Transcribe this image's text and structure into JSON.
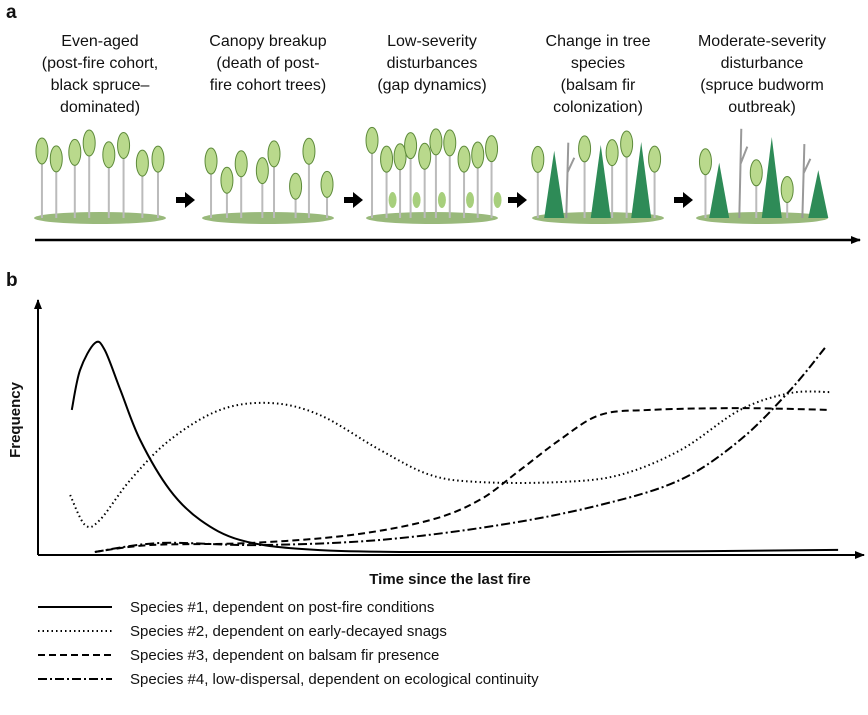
{
  "panel_a": {
    "label": "a",
    "stages": [
      [
        "Even-aged",
        "(post-fire cohort,",
        "black spruce–",
        "dominated)"
      ],
      [
        "Canopy breakup",
        "(death of post-",
        "fire cohort trees)"
      ],
      [
        "Low-severity",
        "disturbances",
        "(gap dynamics)"
      ],
      [
        "Change in tree",
        "species",
        "(balsam fir",
        "colonization)"
      ],
      [
        "Moderate-severity",
        "disturbance",
        "(spruce budworm",
        "outbreak)"
      ]
    ]
  },
  "chart_data": {
    "type": "line",
    "panel_label": "b",
    "x_label": "Time since the last fire",
    "y_label": "Frequency",
    "xlim": [
      0,
      100
    ],
    "ylim": [
      0,
      100
    ],
    "series": [
      {
        "name": "Species #1, dependent on post-fire conditions",
        "color": "#000000",
        "dash": "solid",
        "x": [
          4.1,
          5.1,
          6.9,
          8.1,
          10,
          12.4,
          16,
          19.7,
          24.5,
          31.8,
          43.9,
          68.2,
          97.1
        ],
        "values": [
          56.9,
          72.5,
          83.1,
          80.4,
          64.7,
          45.1,
          25.5,
          13.7,
          5.9,
          2.4,
          1.2,
          1.2,
          2.0
        ]
      },
      {
        "name": "Species #2, dependent on early-decayed snags",
        "color": "#000000",
        "dash": "dotted",
        "x": [
          3.9,
          5.7,
          7.5,
          11.2,
          16.0,
          22.1,
          28.2,
          34.2,
          41.5,
          47.6,
          53.6,
          63.3,
          70.6,
          78.0,
          85.2,
          91.3,
          96.1
        ],
        "values": [
          23.5,
          11.8,
          13.7,
          29.4,
          45.1,
          56.9,
          59.6,
          54.9,
          41.2,
          31.4,
          28.6,
          28.6,
          31.4,
          41.2,
          56.9,
          63.5,
          63.9
        ]
      },
      {
        "name": "Species #3, dependent on balsam fir presence",
        "color": "#000000",
        "dash": "dashed",
        "x": [
          6.9,
          13.6,
          25.7,
          37.9,
          47.6,
          53.6,
          58.5,
          63.3,
          68.2,
          74.3,
          85.2,
          96.1
        ],
        "values": [
          1.2,
          3.9,
          4.7,
          7.8,
          13.7,
          21.6,
          33.3,
          45.1,
          54.9,
          56.9,
          57.6,
          56.9
        ]
      },
      {
        "name": "Species #4, low-dispersal, dependent on ecological continuity",
        "color": "#000000",
        "dash": "dashdot",
        "x": [
          6.9,
          14.8,
          26.9,
          41.5,
          56.1,
          68.2,
          77.9,
          85.2,
          91.3,
          95.5
        ],
        "values": [
          1.2,
          4.7,
          3.9,
          5.9,
          11.8,
          19.6,
          29.4,
          45.1,
          64.7,
          81.2
        ]
      }
    ]
  }
}
